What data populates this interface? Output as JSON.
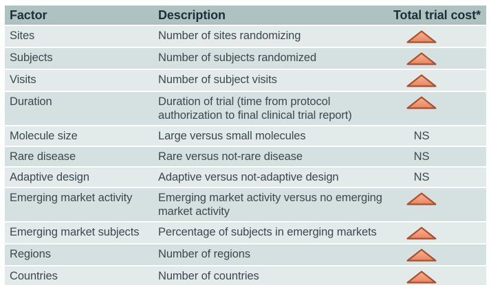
{
  "figure": {
    "columns": [
      {
        "label": "Factor"
      },
      {
        "label": "Description"
      },
      {
        "label": "Total trial cost*"
      }
    ],
    "cost_legend": {
      "increase_icon": "up-triangle-icon",
      "not_significant": "NS"
    },
    "rows": [
      {
        "factor": "Sites",
        "description": "Number of sites randomizing",
        "cost": "increase"
      },
      {
        "factor": "Subjects",
        "description": "Number of subjects randomized",
        "cost": "increase"
      },
      {
        "factor": "Visits",
        "description": "Number of subject visits",
        "cost": "increase"
      },
      {
        "factor": "Duration",
        "description": "Duration of trial (time from protocol authorization to final clinical trial report)",
        "cost": "increase"
      },
      {
        "factor": "Molecule size",
        "description": "Large versus small molecules",
        "cost": "NS"
      },
      {
        "factor": "Rare disease",
        "description": "Rare versus not-rare disease",
        "cost": "NS"
      },
      {
        "factor": "Adaptive design",
        "description": "Adaptive versus not-adaptive design",
        "cost": "NS"
      },
      {
        "factor": "Emerging market activity",
        "description": "Emerging market activity versus no emerging market activity",
        "cost": "increase"
      },
      {
        "factor": "Emerging market subjects",
        "description": "Percentage of subjects in emerging markets",
        "cost": "increase"
      },
      {
        "factor": "Regions",
        "description": "Number of regions",
        "cost": "increase"
      },
      {
        "factor": "Countries",
        "description": "Number of countries",
        "cost": "increase"
      }
    ]
  },
  "colors": {
    "header_bg": "#AEC2C1",
    "row_light": "#E3EAEA",
    "row_dark": "#D5E1E1",
    "header_text": "#1C3038",
    "body_text": "#3B484C",
    "triangle_border": "#A5502F",
    "triangle_fill_top": "#F7B493",
    "triangle_fill_bottom": "#ED8260"
  }
}
